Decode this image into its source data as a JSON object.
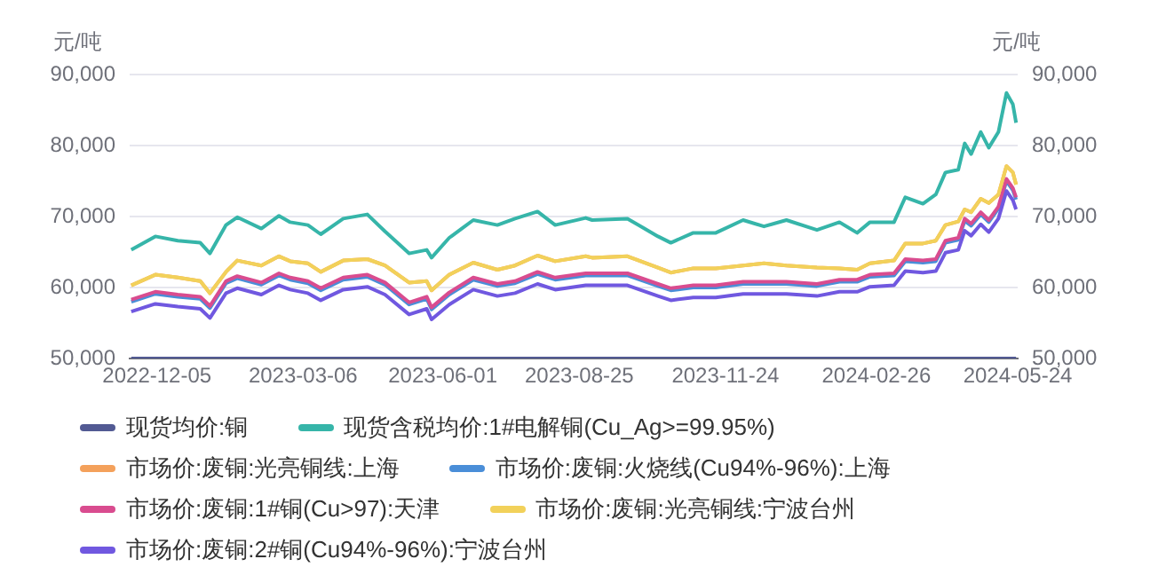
{
  "chart_data": {
    "type": "line",
    "ylabel": "元/吨",
    "y2label": "元/吨",
    "x": [
      "2022-11-19",
      "2022-12-04",
      "2022-12-18",
      "2023-01-01",
      "2023-01-07",
      "2023-01-17",
      "2023-01-24",
      "2023-02-08",
      "2023-02-19",
      "2023-02-26",
      "2023-03-09",
      "2023-03-17",
      "2023-03-31",
      "2023-04-15",
      "2023-04-26",
      "2023-05-11",
      "2023-05-22",
      "2023-05-25",
      "2023-06-05",
      "2023-06-20",
      "2023-07-05",
      "2023-07-16",
      "2023-07-30",
      "2023-08-10",
      "2023-08-29",
      "2023-09-02",
      "2023-09-24",
      "2023-10-13",
      "2023-10-21",
      "2023-11-04",
      "2023-11-18",
      "2023-12-05",
      "2023-12-18",
      "2024-01-01",
      "2024-01-20",
      "2024-02-03",
      "2024-02-14",
      "2024-02-22",
      "2024-03-08",
      "2024-03-15",
      "2024-03-26",
      "2024-04-03",
      "2024-04-09",
      "2024-04-17",
      "2024-04-21",
      "2024-04-25",
      "2024-05-01",
      "2024-05-06",
      "2024-05-12",
      "2024-05-17",
      "2024-05-21",
      "2024-05-23"
    ],
    "series": [
      {
        "name": "现货均价:铜",
        "color": "#525a93",
        "values": [
          50000,
          50000,
          50000,
          50000,
          50000,
          50000,
          50000,
          50000,
          50000,
          50000,
          50000,
          50000,
          50000,
          50000,
          50000,
          50000,
          50000,
          50000,
          50000,
          50000,
          50000,
          50000,
          50000,
          50000,
          50000,
          50000,
          50000,
          50000,
          50000,
          50000,
          50000,
          50000,
          50000,
          50000,
          50000,
          50000,
          50000,
          50000,
          50000,
          50000,
          50000,
          50000,
          50000,
          50000,
          50000,
          50000,
          50000,
          50000,
          50000,
          50000,
          50000,
          50000
        ]
      },
      {
        "name": "现货含税均价:1#电解铜(Cu_Ag>=99.95%)",
        "color": "#36b5a9",
        "values": [
          65300,
          67200,
          66600,
          66300,
          64800,
          68800,
          69900,
          68300,
          70100,
          69200,
          68800,
          67500,
          69700,
          70300,
          67900,
          64800,
          65300,
          64200,
          67000,
          69500,
          68800,
          69700,
          70700,
          68800,
          69800,
          69500,
          69700,
          67200,
          66300,
          67700,
          67700,
          69500,
          68600,
          69500,
          68100,
          69200,
          67700,
          69200,
          69200,
          72700,
          71800,
          73100,
          76200,
          76600,
          80300,
          78800,
          81900,
          79700,
          81900,
          87400,
          85800,
          83200
        ]
      },
      {
        "name": "市场价:废铜:光亮铜线:上海",
        "color": "#f4a15b",
        "values": [
          60300,
          61800,
          61400,
          60900,
          59200,
          62200,
          63800,
          63100,
          64400,
          63700,
          63400,
          62200,
          63800,
          64000,
          63100,
          60700,
          60900,
          59600,
          61800,
          63500,
          62500,
          63100,
          64500,
          63700,
          64400,
          64200,
          64400,
          62800,
          62100,
          62700,
          62700,
          63100,
          63400,
          63100,
          62800,
          62700,
          62500,
          63400,
          63800,
          66200,
          66200,
          66600,
          68800,
          69300,
          71000,
          70600,
          72500,
          71900,
          73100,
          77100,
          76200,
          74500
        ]
      },
      {
        "name": "市场价:废铜:火烧线(Cu94%-96%):上海",
        "color": "#4a8ed8",
        "values": [
          58000,
          59100,
          58700,
          58400,
          57100,
          60600,
          61300,
          60400,
          61700,
          61100,
          60600,
          59600,
          61100,
          61500,
          60400,
          57600,
          58400,
          56900,
          59000,
          61100,
          60200,
          60600,
          61900,
          61100,
          61700,
          61700,
          61700,
          60200,
          59600,
          60000,
          60000,
          60500,
          60500,
          60500,
          60200,
          60800,
          60800,
          61500,
          61700,
          63700,
          63500,
          63700,
          66300,
          66700,
          69400,
          68700,
          70300,
          69200,
          71100,
          75000,
          73700,
          72400
        ]
      },
      {
        "name": "市场价:废铜:1#铜(Cu>97):天津",
        "color": "#d94c8f",
        "values": [
          58300,
          59400,
          59000,
          58700,
          57400,
          60900,
          61600,
          60700,
          62000,
          61400,
          60900,
          59900,
          61400,
          61800,
          60700,
          57900,
          58700,
          57200,
          59300,
          61400,
          60500,
          60900,
          62200,
          61400,
          62000,
          62000,
          62000,
          60500,
          59900,
          60300,
          60300,
          60800,
          60800,
          60800,
          60500,
          61100,
          61100,
          61800,
          62000,
          64000,
          63800,
          64000,
          66600,
          67000,
          69700,
          69000,
          70600,
          69500,
          71400,
          75300,
          74000,
          72700
        ]
      },
      {
        "name": "市场价:废铜:光亮铜线:宁波台州",
        "color": "#f2d15a",
        "values": [
          60300,
          61800,
          61400,
          60900,
          59200,
          62200,
          63800,
          63100,
          64400,
          63700,
          63400,
          62200,
          63800,
          64000,
          63100,
          60700,
          60900,
          59600,
          61800,
          63500,
          62500,
          63100,
          64500,
          63700,
          64400,
          64200,
          64400,
          62800,
          62100,
          62700,
          62700,
          63100,
          63400,
          63100,
          62800,
          62700,
          62500,
          63400,
          63800,
          66200,
          66200,
          66600,
          68800,
          69300,
          71000,
          70600,
          72500,
          71900,
          73100,
          77100,
          76200,
          74500
        ]
      },
      {
        "name": "市场价:废铜:2#铜(Cu94%-96%):宁波台州",
        "color": "#7058e0",
        "values": [
          56600,
          57700,
          57300,
          57000,
          55700,
          59200,
          59900,
          59000,
          60300,
          59700,
          59200,
          58200,
          59700,
          60100,
          59000,
          56200,
          57000,
          55500,
          57600,
          59700,
          58800,
          59200,
          60500,
          59700,
          60300,
          60300,
          60300,
          58800,
          58200,
          58600,
          58600,
          59100,
          59100,
          59100,
          58800,
          59400,
          59400,
          60100,
          60300,
          62300,
          62100,
          62300,
          64900,
          65300,
          68000,
          67300,
          68900,
          67800,
          69700,
          73600,
          72300,
          71000
        ]
      }
    ],
    "xlim": [
      "2022-11-18",
      "2024-05-24"
    ],
    "xticks": [
      "2022-12-05",
      "2023-03-06",
      "2023-06-01",
      "2023-08-25",
      "2023-11-24",
      "2024-02-26",
      "2024-05-24"
    ],
    "ylim": [
      50000,
      90000
    ],
    "yticks": [
      {
        "value": 50000,
        "label": "50,000"
      },
      {
        "value": 60000,
        "label": "60,000"
      },
      {
        "value": 70000,
        "label": "70,000"
      },
      {
        "value": 80000,
        "label": "80,000"
      },
      {
        "value": 90000,
        "label": "90,000"
      }
    ],
    "y2lim": [
      50000,
      90000
    ],
    "y2ticks": [
      {
        "value": 50000,
        "label": "50,000"
      },
      {
        "value": 60000,
        "label": "60,000"
      },
      {
        "value": 70000,
        "label": "70,000"
      },
      {
        "value": 80000,
        "label": "80,000"
      },
      {
        "value": 90000,
        "label": "90,000"
      }
    ],
    "grid": "y",
    "legend": "bottom",
    "marker": "none",
    "line_style": "solid"
  }
}
